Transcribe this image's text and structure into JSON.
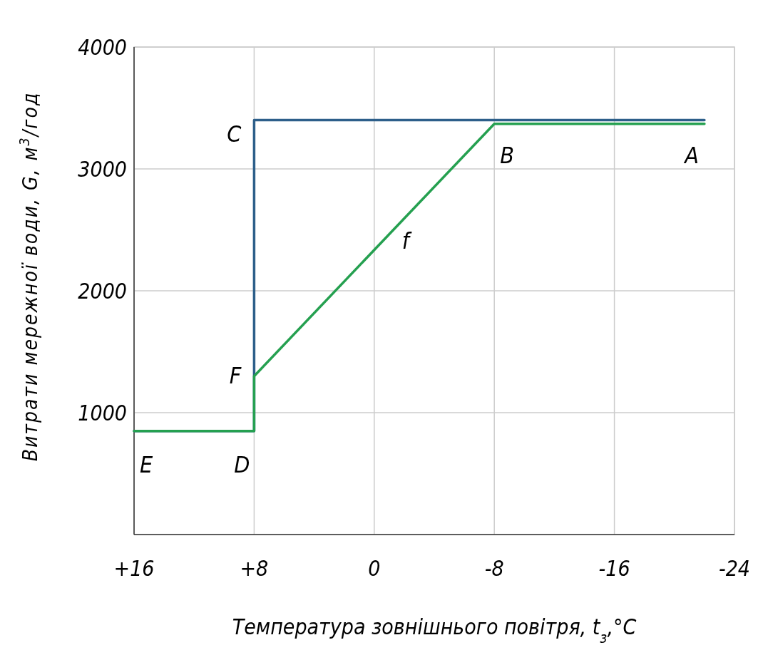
{
  "chart_data": {
    "type": "line",
    "xlabel": "Температура зовнішнього повітря, t$_{з}$,°C",
    "ylabel": "Витрати мережної води, G, м$^{3}$/год",
    "xlim": [
      16,
      -24
    ],
    "xticks": [
      {
        "value": 16,
        "label": "+16"
      },
      {
        "value": 8,
        "label": "+8"
      },
      0,
      -8,
      -16,
      -24
    ],
    "ylim": [
      0,
      4000
    ],
    "yticks": [
      1000,
      2000,
      3000,
      4000
    ],
    "grid": true,
    "marker": "none",
    "line_style": "solid",
    "series": [
      {
        "color": "#2d5f8a",
        "x": [
          16,
          8,
          8,
          -22
        ],
        "values": [
          850,
          850,
          3400,
          3400
        ]
      },
      {
        "color": "#25a050",
        "x": [
          16,
          8,
          8,
          -8,
          -22
        ],
        "values": [
          850,
          850,
          1300,
          3370,
          3370
        ]
      }
    ],
    "annotations": [
      {
        "text": "C",
        "x": 8,
        "y": 3400
      },
      {
        "text": "B",
        "x": -8,
        "y": 3370
      },
      {
        "text": "A",
        "x": -22,
        "y": 3370
      },
      {
        "text": "F",
        "x": 8,
        "y": 1300
      },
      {
        "text": "E",
        "x": 16,
        "y": 850
      },
      {
        "text": "D",
        "x": 8,
        "y": 850
      },
      {
        "text": "f",
        "x": -1,
        "y": 2460
      }
    ]
  }
}
